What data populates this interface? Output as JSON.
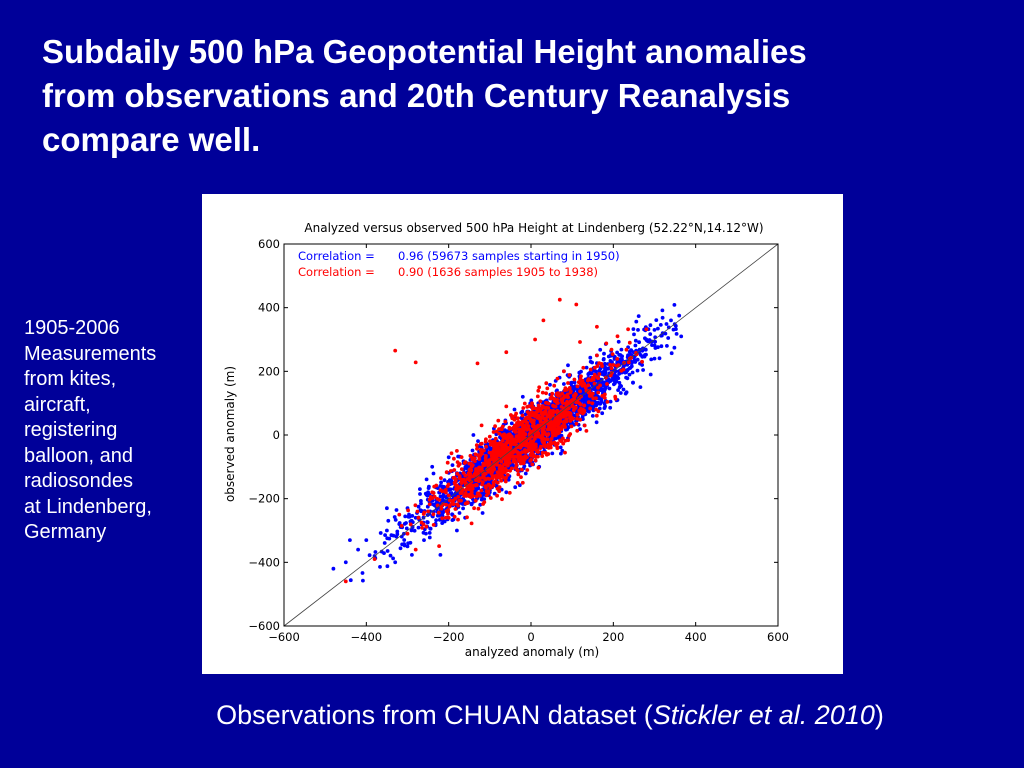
{
  "title_lines": [
    "Subdaily 500 hPa Geopotential Height anomalies",
    "from observations and 20th Century Reanalysis",
    "compare well."
  ],
  "side_lines": [
    "1905-2006",
    "Measurements",
    "from kites,",
    "aircraft,",
    "registering",
    "balloon, and",
    "radiosondes",
    "at Lindenberg,",
    "Germany"
  ],
  "caption": {
    "prefix": "Observations from CHUAN dataset (",
    "italic": "Stickler et al. 2010",
    "suffix": ")"
  },
  "colors": {
    "background": "#000099",
    "series_modern": "#0000ff",
    "series_early": "#ff0000"
  },
  "chart_data": {
    "type": "scatter",
    "title": "Analyzed versus observed 500 hPa Height at Lindenberg (52.22°N,14.12°W)",
    "xlabel": "analyzed anomaly (m)",
    "ylabel": "observed anomaly (m)",
    "xlim": [
      -600,
      600
    ],
    "ylim": [
      -600,
      600
    ],
    "xticks": [
      -600,
      -400,
      -200,
      0,
      200,
      400,
      600
    ],
    "yticks": [
      -600,
      -400,
      -200,
      0,
      200,
      400,
      600
    ],
    "tick_labels_x": [
      "−600",
      "−400",
      "−200",
      "0",
      "200",
      "400",
      "600"
    ],
    "tick_labels_y": [
      "−600",
      "−400",
      "−200",
      "0",
      "200",
      "400",
      "600"
    ],
    "reference_line": {
      "from": [
        -600,
        -600
      ],
      "to": [
        600,
        600
      ]
    },
    "grid": false,
    "legend_position": "top-left",
    "annotations": [
      {
        "label": "Correlation =",
        "value": "0.96 (59673 samples starting in 1950)",
        "color": "#0000ff"
      },
      {
        "label": "Correlation =",
        "value": "0.90 (1636 samples 1905 to 1938)",
        "color": "#ff0000"
      }
    ],
    "series": [
      {
        "color": "#0000ff",
        "correlation": 0.96,
        "samples": 59673,
        "cloud": {
          "x_mean": 0,
          "x_sd": 135,
          "slope": 0.96,
          "residual_sd": 40,
          "x_range": [
            -480,
            370
          ]
        },
        "points": [
          [
            -480,
            -420
          ],
          [
            -450,
            -400
          ],
          [
            -420,
            -360
          ],
          [
            -400,
            -330
          ],
          [
            -380,
            -380
          ],
          [
            -350,
            -300
          ],
          [
            -320,
            -280
          ],
          [
            -300,
            -230
          ],
          [
            -280,
            -260
          ],
          [
            -250,
            -180
          ],
          [
            -220,
            -160
          ],
          [
            -200,
            -220
          ],
          [
            -180,
            -120
          ],
          [
            -150,
            -150
          ],
          [
            -120,
            -80
          ],
          [
            -100,
            -40
          ],
          [
            -80,
            -120
          ],
          [
            -50,
            -10
          ],
          [
            -30,
            20
          ],
          [
            0,
            -20
          ],
          [
            20,
            40
          ],
          [
            50,
            80
          ],
          [
            80,
            60
          ],
          [
            100,
            120
          ],
          [
            120,
            100
          ],
          [
            150,
            170
          ],
          [
            180,
            200
          ],
          [
            200,
            180
          ],
          [
            220,
            240
          ],
          [
            250,
            260
          ],
          [
            280,
            300
          ],
          [
            300,
            330
          ],
          [
            320,
            320
          ],
          [
            340,
            360
          ],
          [
            360,
            375
          ],
          [
            290,
            345
          ],
          [
            260,
            330
          ],
          [
            240,
            210
          ],
          [
            -440,
            -330
          ],
          [
            -330,
            -400
          ],
          [
            -260,
            -330
          ],
          [
            -160,
            -260
          ],
          [
            -60,
            -180
          ],
          [
            40,
            -60
          ],
          [
            130,
            30
          ],
          [
            210,
            110
          ],
          [
            270,
            220
          ],
          [
            330,
            280
          ],
          [
            -240,
            -100
          ],
          [
            -140,
            0
          ],
          [
            -40,
            80
          ],
          [
            60,
            170
          ],
          [
            160,
            250
          ],
          [
            90,
            -10
          ],
          [
            -90,
            20
          ],
          [
            -200,
            -70
          ],
          [
            -350,
            -230
          ],
          [
            -300,
            -350
          ],
          [
            180,
            90
          ],
          [
            230,
            130
          ],
          [
            80,
            200
          ],
          [
            -20,
            120
          ],
          [
            -100,
            -180
          ],
          [
            20,
            -100
          ],
          [
            -180,
            -300
          ],
          [
            300,
            240
          ],
          [
            150,
            60
          ],
          [
            -270,
            -170
          ]
        ]
      },
      {
        "color": "#ff0000",
        "correlation": 0.9,
        "samples": 1636,
        "cloud": {
          "x_mean": -20,
          "x_sd": 100,
          "slope": 0.95,
          "residual_sd": 48,
          "x_range": [
            -360,
            320
          ]
        },
        "points": [
          [
            -330,
            265
          ],
          [
            -280,
            228
          ],
          [
            -130,
            225
          ],
          [
            70,
            425
          ],
          [
            160,
            250
          ],
          [
            30,
            360
          ],
          [
            110,
            410
          ],
          [
            160,
            340
          ],
          [
            210,
            310
          ],
          [
            240,
            290
          ],
          [
            10,
            300
          ],
          [
            -60,
            260
          ],
          [
            -450,
            -460
          ],
          [
            -380,
            -390
          ],
          [
            -300,
            -310
          ],
          [
            -250,
            -240
          ],
          [
            -200,
            -190
          ],
          [
            -150,
            -140
          ],
          [
            -100,
            -90
          ],
          [
            -50,
            -40
          ],
          [
            0,
            10
          ],
          [
            50,
            40
          ],
          [
            100,
            110
          ],
          [
            150,
            130
          ],
          [
            200,
            220
          ],
          [
            -240,
            -180
          ],
          [
            -200,
            -260
          ],
          [
            -150,
            -90
          ],
          [
            -100,
            -160
          ],
          [
            -50,
            20
          ],
          [
            0,
            -60
          ],
          [
            50,
            120
          ],
          [
            100,
            50
          ],
          [
            -180,
            -50
          ],
          [
            -120,
            30
          ],
          [
            -60,
            90
          ],
          [
            20,
            150
          ],
          [
            80,
            200
          ],
          [
            -20,
            -150
          ],
          [
            60,
            -30
          ],
          [
            -280,
            -360
          ],
          [
            -320,
            -250
          ],
          [
            270,
            230
          ]
        ]
      }
    ]
  }
}
